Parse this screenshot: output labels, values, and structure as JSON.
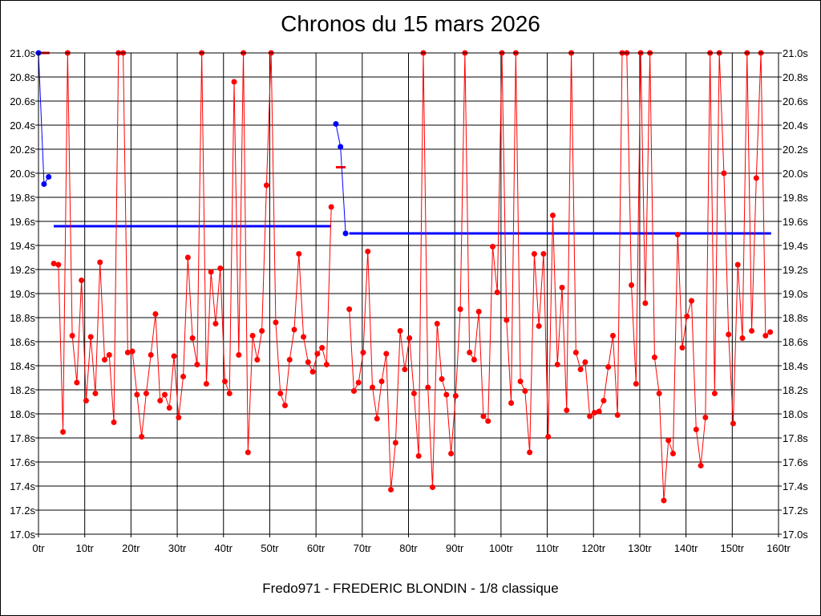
{
  "chart_data": {
    "type": "line",
    "title": "Chronos du 15 mars 2026",
    "footer": "Fredo971 - FREDERIC BLONDIN - 1/8 classique",
    "xlabel": "",
    "ylabel": "",
    "xlim": [
      0,
      160
    ],
    "ylim": [
      17.0,
      21.0
    ],
    "grid": true,
    "x_ticks": [
      0,
      10,
      20,
      30,
      40,
      50,
      60,
      70,
      80,
      90,
      100,
      110,
      120,
      130,
      140,
      150,
      160
    ],
    "x_tick_labels": [
      "0tr",
      "10tr",
      "20tr",
      "30tr",
      "40tr",
      "50tr",
      "60tr",
      "70tr",
      "80tr",
      "90tr",
      "100tr",
      "110tr",
      "120tr",
      "130tr",
      "140tr",
      "150tr",
      "160tr"
    ],
    "y_ticks": [
      17.0,
      17.2,
      17.4,
      17.6,
      17.8,
      18.0,
      18.2,
      18.4,
      18.6,
      18.8,
      19.0,
      19.2,
      19.4,
      19.6,
      19.8,
      20.0,
      20.2,
      20.4,
      20.6,
      20.8,
      21.0
    ],
    "y_tick_labels": [
      "17.0s",
      "17.2s",
      "17.4s",
      "17.6s",
      "17.8s",
      "18.0s",
      "18.2s",
      "18.4s",
      "18.6s",
      "18.8s",
      "19.0s",
      "19.2s",
      "19.4s",
      "19.6s",
      "19.8s",
      "20.0s",
      "20.2s",
      "20.4s",
      "20.6s",
      "20.8s",
      "21.0s"
    ],
    "colors": {
      "laps": "#ff0000",
      "pit": "#0000ff",
      "average": "#0000ff",
      "pit_marker": "#ff0000",
      "grid": "#000000"
    },
    "series": [
      {
        "name": "laps-1",
        "color": "#ff0000",
        "x_start": 3.3,
        "x_step": 1,
        "values": [
          19.25,
          19.24,
          17.85,
          21.0,
          18.65,
          18.26,
          19.11,
          18.11,
          18.64,
          18.17,
          19.26,
          18.45,
          18.49,
          17.93,
          21.0,
          21.0,
          18.51,
          18.52,
          18.16,
          17.81,
          18.17,
          18.49,
          18.83,
          18.11,
          18.16,
          18.05,
          18.48,
          17.97,
          18.31,
          19.3,
          18.63,
          18.41,
          21.0,
          18.25,
          19.18,
          18.75,
          19.21,
          18.27,
          18.17,
          20.76,
          18.49,
          21.0,
          17.68,
          18.65,
          18.45,
          18.69,
          19.9,
          21.0,
          18.76,
          18.17,
          18.07,
          18.45,
          18.7,
          19.33,
          18.64,
          18.43,
          18.35,
          18.5,
          18.55,
          18.41,
          19.72
        ]
      },
      {
        "name": "laps-2",
        "color": "#ff0000",
        "x_start": 67.2,
        "x_step": 1,
        "values": [
          18.87,
          18.19,
          18.26,
          18.51,
          19.35,
          18.22,
          17.96,
          18.27,
          18.5,
          17.37,
          17.76,
          18.69,
          18.37,
          18.63,
          18.17,
          17.65,
          21.0,
          18.22,
          17.39,
          18.75,
          18.29,
          18.16,
          17.67,
          18.15,
          18.87,
          21.0,
          18.51,
          18.45,
          18.85,
          17.98,
          17.94,
          19.39,
          19.01,
          21.0,
          18.78,
          18.09,
          21.0,
          18.27,
          18.19,
          17.68,
          19.33,
          18.73,
          19.33,
          17.81,
          19.65,
          18.41,
          19.05,
          18.03,
          21.0,
          18.51,
          18.37,
          18.43,
          17.98,
          18.01,
          18.02,
          18.11,
          18.39,
          18.65,
          17.99,
          21.0,
          21.0,
          19.07,
          18.25,
          21.0,
          18.92,
          21.0,
          18.47,
          18.17,
          17.28,
          17.78,
          17.67,
          19.49,
          18.55,
          18.81,
          18.94,
          17.87,
          17.57,
          17.97,
          21.0,
          18.17,
          21.0,
          20.0,
          18.66,
          17.92,
          19.24,
          18.63,
          21.0,
          18.69,
          19.96,
          21.0,
          18.65,
          18.68
        ]
      },
      {
        "name": "pit-1",
        "color": "#0000ff",
        "points": [
          [
            0,
            21.0
          ],
          [
            1.2,
            19.91
          ],
          [
            2.2,
            19.97
          ]
        ]
      },
      {
        "name": "pit-2",
        "color": "#0000ff",
        "points": [
          [
            64.3,
            20.41
          ],
          [
            65.3,
            20.22
          ],
          [
            66.4,
            19.5
          ]
        ]
      }
    ],
    "averages": [
      {
        "name": "average-stint-1",
        "value": 19.56,
        "x_range": [
          3.3,
          63.3
        ]
      },
      {
        "name": "average-stint-2",
        "value": 19.5,
        "x_range": [
          67.2,
          158.4
        ]
      }
    ],
    "pit_markers": [
      {
        "name": "pit-marker-1",
        "value": 21.0,
        "x_range": [
          0,
          2.4
        ]
      },
      {
        "name": "pit-marker-2",
        "value": 20.05,
        "x_range": [
          64.3,
          66.4
        ]
      }
    ]
  }
}
